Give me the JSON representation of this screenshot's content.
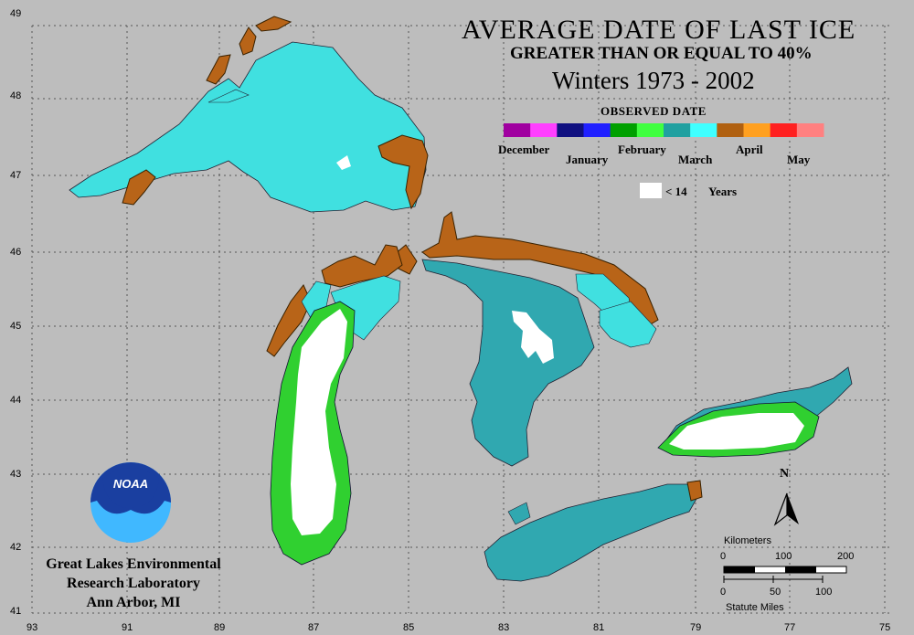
{
  "title": {
    "line1": "AVERAGE DATE OF LAST ICE",
    "line2": "GREATER THAN OR EQUAL TO 40%",
    "line3": "Winters 1973 - 2002"
  },
  "legend": {
    "heading": "OBSERVED DATE",
    "colors": [
      "#a000a0",
      "#ff40ff",
      "#101080",
      "#2020ff",
      "#00a000",
      "#40ff40",
      "#20a0a0",
      "#40ffff",
      "#b06010",
      "#ffa020",
      "#ff2020",
      "#ff8080"
    ],
    "months_top": [
      "December",
      "February",
      "April"
    ],
    "months_bottom": [
      "January",
      "March",
      "May"
    ],
    "no_ice_label": "< 14",
    "no_ice_unit": "Years",
    "no_ice_color": "#ffffff"
  },
  "axes": {
    "latitudes": [
      "49",
      "48",
      "47",
      "46",
      "45",
      "44",
      "43",
      "42",
      "41"
    ],
    "longitudes": [
      "93",
      "91",
      "89",
      "87",
      "85",
      "83",
      "81",
      "79",
      "77",
      "75"
    ]
  },
  "colors": {
    "background": "#bdbdbd",
    "march": "#40e0e0",
    "march_dark": "#30a8b0",
    "april": "#b86418",
    "february": "#30d030",
    "no_ice": "#ffffff",
    "noaa_blue": "#1a3fa0",
    "noaa_light": "#40b8ff"
  },
  "credit": {
    "line1": "Great Lakes Environmental",
    "line2": "Research Laboratory",
    "line3": "Ann Arbor, MI",
    "logo_text": "NOAA"
  },
  "scale": {
    "km_label": "Kilometers",
    "km_ticks": [
      "0",
      "100",
      "200"
    ],
    "mi_ticks": [
      "0",
      "50",
      "100"
    ],
    "mi_label": "Statute Miles",
    "north": "N"
  }
}
